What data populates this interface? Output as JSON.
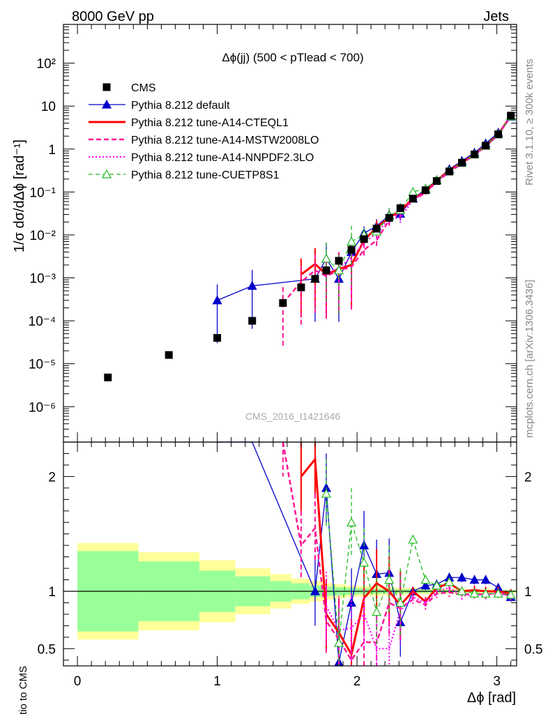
{
  "header": {
    "energy": "8000 GeV pp",
    "process": "Jets",
    "side_text": "Rivet 3.1.10, ≥ 300k events",
    "side_url": "mcplots.cern.ch [arXiv:1306.3436]",
    "watermark": "CMS_2016_I1421646"
  },
  "legend": {
    "items": [
      {
        "label": "CMS",
        "color": "#000000",
        "style": "marker-square"
      },
      {
        "label": "Pythia 8.212 default",
        "color": "#0000cc",
        "style": "solid-triangle"
      },
      {
        "label": "Pythia 8.212 tune-A14-CTEQL1",
        "color": "#ff0000",
        "style": "solid-thick"
      },
      {
        "label": "Pythia 8.212 tune-A14-MSTW2008LO",
        "color": "#ff1493",
        "style": "dashed"
      },
      {
        "label": "Pythia 8.212 tune-A14-NNPDF2.3LO",
        "color": "#ff00ff",
        "style": "dotted"
      },
      {
        "label": "Pythia 8.212 tune-CUETP8S1",
        "color": "#22bb22",
        "style": "dashed-open-triangle"
      }
    ]
  },
  "chart_data": {
    "type": "line",
    "title": "Δϕ(jj) (500 < pTlead <  700)",
    "xlabel": "Δϕ [rad]",
    "ylabel": "1/σ dσ/dΔϕ [rad⁻¹]",
    "ratio_ylabel": "Ratio to CMS",
    "xlim": [
      -0.1,
      3.1416
    ],
    "ylim_log": [
      1.5e-07,
      800
    ],
    "ratio_ylim": [
      0.35,
      2.3
    ],
    "x_ticks": [
      "0",
      "1",
      "2",
      "3"
    ],
    "y_ticks": [
      "10⁻⁶",
      "10⁻⁵",
      "10⁻⁴",
      "10⁻³",
      "10⁻²",
      "10⁻¹",
      "1",
      "10",
      "10²"
    ],
    "ratio_ticks": [
      "0.5",
      "1",
      "2"
    ],
    "cms": {
      "x": [
        0.218,
        0.654,
        1.0,
        1.25,
        1.47,
        1.6,
        1.7,
        1.78,
        1.87,
        1.96,
        2.05,
        2.14,
        2.23,
        2.31,
        2.4,
        2.49,
        2.57,
        2.66,
        2.75,
        2.84,
        2.92,
        3.01,
        3.1
      ],
      "y": [
        4.8e-06,
        1.6e-05,
        4e-05,
        0.0001,
        0.00026,
        0.0006,
        0.00095,
        0.0015,
        0.0025,
        0.0045,
        0.008,
        0.014,
        0.025,
        0.042,
        0.07,
        0.11,
        0.18,
        0.3,
        0.48,
        0.75,
        1.2,
        2.2,
        6.0
      ]
    },
    "series": [
      {
        "name": "Pythia 8.212 default",
        "x": [
          1.0,
          1.25,
          1.7,
          1.78,
          1.87,
          1.96,
          2.05,
          2.14,
          2.23,
          2.31,
          2.4,
          2.49,
          2.57,
          2.66,
          2.75,
          2.84,
          2.92,
          3.01,
          3.1
        ],
        "y": [
          0.0003,
          0.00065,
          0.00095,
          0.0028,
          0.00095,
          0.004,
          0.011,
          0.016,
          0.029,
          0.031,
          0.07,
          0.115,
          0.19,
          0.34,
          0.53,
          0.82,
          1.35,
          2.4,
          5.7
        ],
        "ratio": [
          7.5,
          6.5,
          1.0,
          1.9,
          0.38,
          0.9,
          1.4,
          1.15,
          1.16,
          0.73,
          1.0,
          1.05,
          1.06,
          1.12,
          1.12,
          1.1,
          1.1,
          1.03,
          0.95
        ]
      },
      {
        "name": "Pythia 8.212 tune-A14-CTEQL1",
        "x": [
          1.6,
          1.7,
          1.78,
          1.87,
          1.96,
          2.05,
          2.14,
          2.23,
          2.31,
          2.4,
          2.49,
          2.57,
          2.66,
          2.75,
          2.84,
          2.92,
          3.01,
          3.1
        ],
        "y": [
          0.0012,
          0.0021,
          0.0012,
          0.0016,
          0.002,
          0.0075,
          0.015,
          0.025,
          0.037,
          0.07,
          0.1,
          0.185,
          0.32,
          0.48,
          0.75,
          1.2,
          2.2,
          5.9
        ],
        "ratio": [
          2.0,
          2.15,
          0.8,
          0.64,
          0.45,
          0.94,
          1.07,
          1.0,
          0.88,
          1.0,
          0.91,
          1.03,
          1.07,
          1.0,
          1.01,
          1.0,
          1.0,
          0.98
        ]
      },
      {
        "name": "Pythia 8.212 tune-A14-MSTW2008LO",
        "x": [
          1.47,
          1.6,
          1.7,
          1.78,
          1.87,
          1.96,
          2.05,
          2.14,
          2.23,
          2.31,
          2.4,
          2.49,
          2.57,
          2.66,
          2.75,
          2.84,
          2.92,
          3.01,
          3.1
        ],
        "y": [
          0.00026,
          0.0008,
          0.0015,
          0.0011,
          0.0015,
          0.0018,
          0.0045,
          0.0075,
          0.022,
          0.035,
          0.065,
          0.095,
          0.175,
          0.29,
          0.46,
          0.73,
          1.15,
          2.15,
          5.8
        ],
        "ratio": [
          2.3,
          1.4,
          1.55,
          0.74,
          0.58,
          0.4,
          0.56,
          0.55,
          0.9,
          0.85,
          0.93,
          0.88,
          0.98,
          0.99,
          0.97,
          0.98,
          0.97,
          0.99,
          0.96
        ]
      },
      {
        "name": "Pythia 8.212 tune-A14-NNPDF2.3LO",
        "x": [
          1.78,
          1.87,
          1.96,
          2.05,
          2.14,
          2.23,
          2.31,
          2.4,
          2.49,
          2.57,
          2.66,
          2.75,
          2.84,
          2.92,
          3.01,
          3.1
        ],
        "y": [
          0.0013,
          0.0017,
          0.003,
          0.0065,
          0.011,
          0.024,
          0.025,
          0.065,
          0.1,
          0.175,
          0.31,
          0.46,
          0.73,
          1.15,
          2.15,
          5.8
        ],
        "ratio": [
          0.87,
          0.66,
          0.68,
          0.8,
          0.5,
          0.5,
          0.83,
          0.95,
          0.9,
          1.0,
          1.03,
          0.96,
          0.97,
          0.97,
          0.98,
          0.96
        ]
      },
      {
        "name": "Pythia 8.212 tune-CUETP8S1",
        "x": [
          1.78,
          1.87,
          1.96,
          2.05,
          2.14,
          2.23,
          2.31,
          2.4,
          2.49,
          2.57,
          2.66,
          2.75,
          2.84,
          2.92,
          3.01,
          3.1
        ],
        "y": [
          0.0028,
          0.0015,
          0.007,
          0.01,
          0.012,
          0.028,
          0.038,
          0.1,
          0.12,
          0.19,
          0.31,
          0.48,
          0.75,
          1.2,
          2.2,
          5.8
        ],
        "ratio": [
          1.85,
          0.55,
          1.6,
          1.25,
          0.82,
          1.1,
          0.9,
          1.45,
          1.1,
          1.05,
          1.08,
          1.0,
          0.98,
          0.98,
          0.98,
          0.97
        ]
      }
    ],
    "bands": {
      "edges": [
        0.0,
        0.436,
        0.873,
        1.13,
        1.38,
        1.53,
        1.66,
        1.75,
        1.83,
        1.92,
        2.0,
        2.09,
        2.18,
        2.27,
        2.36,
        2.44,
        2.53,
        2.62,
        2.71,
        2.79,
        2.88,
        2.97,
        3.05,
        3.1416
      ],
      "yellow": [
        0.42,
        0.34,
        0.27,
        0.2,
        0.15,
        0.11,
        0.09,
        0.07,
        0.06,
        0.05,
        0.045,
        0.04,
        0.035,
        0.03,
        0.028,
        0.026,
        0.024,
        0.022,
        0.02,
        0.018,
        0.016,
        0.015,
        0.014
      ],
      "green": [
        0.35,
        0.26,
        0.18,
        0.13,
        0.09,
        0.07,
        0.05,
        0.04,
        0.035,
        0.03,
        0.025,
        0.02,
        0.018,
        0.016,
        0.014,
        0.012,
        0.011,
        0.01,
        0.01,
        0.009,
        0.008,
        0.008,
        0.007
      ]
    }
  }
}
